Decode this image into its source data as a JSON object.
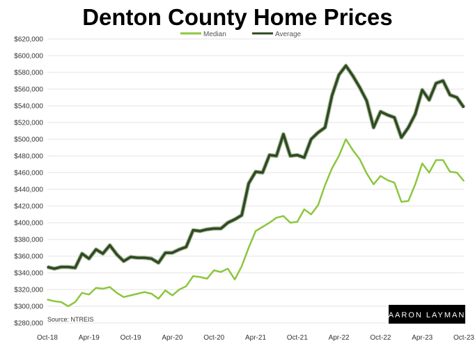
{
  "chart_data": {
    "type": "line",
    "title": "Denton County Home Prices",
    "xlabel": "",
    "ylabel": "",
    "ylim": [
      280000,
      620000
    ],
    "y_ticks": [
      "$280,000",
      "$300,000",
      "$320,000",
      "$340,000",
      "$360,000",
      "$380,000",
      "$400,000",
      "$420,000",
      "$440,000",
      "$460,000",
      "$480,000",
      "$500,000",
      "$520,000",
      "$540,000",
      "$560,000",
      "$580,000",
      "$600,000",
      "$620,000"
    ],
    "x_ticks": [
      "Oct-18",
      "Apr-19",
      "Oct-19",
      "Apr-20",
      "Oct-20",
      "Apr-21",
      "Oct-21",
      "Apr-22",
      "Oct-22",
      "Apr-23",
      "Oct-23"
    ],
    "categories": [
      "Oct-18",
      "Nov-18",
      "Dec-18",
      "Jan-19",
      "Feb-19",
      "Mar-19",
      "Apr-19",
      "May-19",
      "Jun-19",
      "Jul-19",
      "Aug-19",
      "Sep-19",
      "Oct-19",
      "Nov-19",
      "Dec-19",
      "Jan-20",
      "Feb-20",
      "Mar-20",
      "Apr-20",
      "May-20",
      "Jun-20",
      "Jul-20",
      "Aug-20",
      "Sep-20",
      "Oct-20",
      "Nov-20",
      "Dec-20",
      "Jan-21",
      "Feb-21",
      "Mar-21",
      "Apr-21",
      "May-21",
      "Jun-21",
      "Jul-21",
      "Aug-21",
      "Sep-21",
      "Oct-21",
      "Nov-21",
      "Dec-21",
      "Jan-22",
      "Feb-22",
      "Mar-22",
      "Apr-22",
      "May-22",
      "Jun-22",
      "Jul-22",
      "Aug-22",
      "Sep-22",
      "Oct-22",
      "Nov-22",
      "Dec-22",
      "Jan-23",
      "Feb-23",
      "Mar-23",
      "Apr-23",
      "May-23",
      "Jun-23",
      "Jul-23",
      "Aug-23",
      "Sep-23",
      "Oct-23"
    ],
    "series": [
      {
        "name": "Median",
        "color": "#8cc63f",
        "values": [
          308000,
          306000,
          305000,
          300000,
          305000,
          316000,
          314000,
          322000,
          321000,
          323000,
          316000,
          311000,
          313000,
          315000,
          317000,
          315000,
          309000,
          319000,
          313000,
          320000,
          324000,
          336000,
          335000,
          333000,
          343000,
          341000,
          345000,
          332000,
          348000,
          370000,
          390000,
          395000,
          400000,
          406000,
          408000,
          400000,
          401000,
          416000,
          410000,
          421000,
          445000,
          465000,
          480000,
          500000,
          487000,
          476000,
          459000,
          446000,
          456000,
          451000,
          448000,
          425000,
          426000,
          446000,
          471000,
          460000,
          475000,
          475000,
          461000,
          460000,
          450000
        ]
      },
      {
        "name": "Average",
        "color": "#2e4a1f",
        "values": [
          347000,
          345000,
          347000,
          347000,
          346000,
          363000,
          357000,
          368000,
          363000,
          373000,
          362000,
          354000,
          359000,
          358000,
          358000,
          357000,
          352000,
          364000,
          364000,
          368000,
          371000,
          391000,
          390000,
          392000,
          393000,
          393000,
          400000,
          404000,
          409000,
          447000,
          461000,
          460000,
          481000,
          480000,
          506000,
          480000,
          481000,
          478000,
          500000,
          508000,
          514000,
          552000,
          577000,
          588000,
          576000,
          562000,
          546000,
          514000,
          533000,
          529000,
          526000,
          502000,
          514000,
          530000,
          559000,
          547000,
          567000,
          570000,
          553000,
          550000,
          538000
        ]
      }
    ],
    "legend": "top-center",
    "grid": true,
    "source_note": "Source: NTREIS",
    "logo_text": "AARON LAYMAN"
  }
}
